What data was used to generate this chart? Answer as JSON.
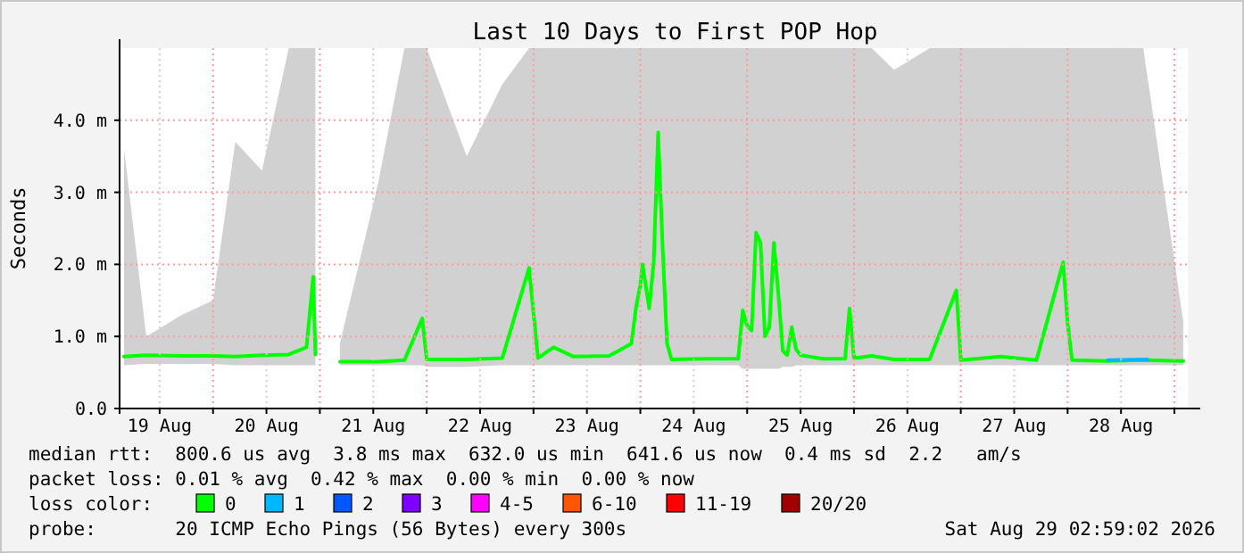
{
  "chart_data": {
    "type": "line",
    "title": "Last 10 Days to First POP Hop",
    "ylabel": "Seconds",
    "xlim": [
      "2026-08-19T03:00",
      "2026-08-29T03:00"
    ],
    "xticks": [
      {
        "value": "2026-08-19T12:00",
        "label": "19 Aug"
      },
      {
        "value": "2026-08-20T00:00",
        "label": null
      },
      {
        "value": "2026-08-20T12:00",
        "label": "20 Aug"
      },
      {
        "value": "2026-08-21T00:00",
        "label": null
      },
      {
        "value": "2026-08-21T12:00",
        "label": "21 Aug"
      },
      {
        "value": "2026-08-22T00:00",
        "label": null
      },
      {
        "value": "2026-08-22T12:00",
        "label": "22 Aug"
      },
      {
        "value": "2026-08-23T00:00",
        "label": null
      },
      {
        "value": "2026-08-23T12:00",
        "label": "23 Aug"
      },
      {
        "value": "2026-08-24T00:00",
        "label": null
      },
      {
        "value": "2026-08-24T12:00",
        "label": "24 Aug"
      },
      {
        "value": "2026-08-25T00:00",
        "label": null
      },
      {
        "value": "2026-08-25T12:00",
        "label": "25 Aug"
      },
      {
        "value": "2026-08-26T00:00",
        "label": null
      },
      {
        "value": "2026-08-26T12:00",
        "label": "26 Aug"
      },
      {
        "value": "2026-08-27T00:00",
        "label": null
      },
      {
        "value": "2026-08-27T12:00",
        "label": "27 Aug"
      },
      {
        "value": "2026-08-28T00:00",
        "label": null
      },
      {
        "value": "2026-08-28T12:00",
        "label": "28 Aug"
      },
      {
        "value": "2026-08-29T00:00",
        "label": null
      }
    ],
    "ylim": [
      0,
      5
    ],
    "yticks": [
      {
        "value": 0,
        "label": "0.0"
      },
      {
        "value": 1,
        "label": "1.0 m"
      },
      {
        "value": 2,
        "label": "2.0 m"
      },
      {
        "value": 3,
        "label": "3.0 m"
      },
      {
        "value": 4,
        "label": "4.0 m"
      }
    ],
    "grid": true,
    "legend": "bottom",
    "legend_title": "loss color:",
    "marker": "none",
    "line_style": "solid",
    "series": [
      {
        "name": "0",
        "color": "#00ff00",
        "x": [
          "2026-08-19T04:00",
          "2026-08-19T09:00",
          "2026-08-19T17:00",
          "2026-08-20T00:00",
          "2026-08-20T05:00",
          "2026-08-20T11:00",
          "2026-08-20T17:00",
          "2026-08-20T21:00",
          "2026-08-20T22:30",
          "2026-08-20T23:00",
          "2026-08-21T01:00",
          "2026-08-21T04:30",
          "2026-08-21T13:00",
          "2026-08-21T19:00",
          "2026-08-21T23:00",
          "2026-08-22T00:00",
          "2026-08-22T09:00",
          "2026-08-22T17:00",
          "2026-08-22T23:00",
          "2026-08-23T01:00",
          "2026-08-23T04:30",
          "2026-08-23T09:00",
          "2026-08-23T17:00",
          "2026-08-23T22:00",
          "2026-08-23T23:00",
          "2026-08-24T00:00",
          "2026-08-24T00:30",
          "2026-08-24T02:00",
          "2026-08-24T03:00",
          "2026-08-24T04:00",
          "2026-08-24T05:00",
          "2026-08-24T06:00",
          "2026-08-24T07:00",
          "2026-08-24T15:00",
          "2026-08-24T22:00",
          "2026-08-24T23:00",
          "2026-08-25T00:00",
          "2026-08-25T01:00",
          "2026-08-25T02:00",
          "2026-08-25T03:00",
          "2026-08-25T04:00",
          "2026-08-25T05:00",
          "2026-08-25T06:00",
          "2026-08-25T07:00",
          "2026-08-25T08:00",
          "2026-08-25T09:00",
          "2026-08-25T10:00",
          "2026-08-25T11:00",
          "2026-08-25T12:00",
          "2026-08-25T17:00",
          "2026-08-25T22:00",
          "2026-08-25T23:00",
          "2026-08-26T00:00",
          "2026-08-26T04:00",
          "2026-08-26T09:00",
          "2026-08-26T17:00",
          "2026-08-26T23:00",
          "2026-08-27T00:00",
          "2026-08-27T09:00",
          "2026-08-27T17:00",
          "2026-08-27T23:00",
          "2026-08-28T00:00",
          "2026-08-28T01:00",
          "2026-08-28T09:00",
          "2026-08-28T17:00",
          "2026-08-29T02:00"
        ],
        "values": [
          0.72,
          0.74,
          0.73,
          0.73,
          0.72,
          0.74,
          0.75,
          0.85,
          1.83,
          0.75,
          null,
          0.65,
          0.65,
          0.67,
          1.25,
          0.68,
          0.68,
          0.7,
          1.95,
          0.7,
          0.85,
          0.72,
          0.73,
          0.9,
          1.39,
          1.72,
          2.0,
          1.39,
          2.03,
          3.83,
          2.25,
          0.9,
          0.68,
          0.69,
          0.69,
          1.36,
          1.15,
          1.08,
          2.44,
          2.3,
          1.0,
          1.13,
          2.3,
          1.6,
          0.8,
          0.74,
          1.13,
          0.82,
          0.74,
          0.69,
          0.69,
          1.39,
          0.7,
          0.73,
          0.68,
          0.68,
          1.64,
          0.67,
          0.72,
          0.67,
          2.03,
          1.18,
          0.67,
          0.66,
          0.67,
          0.66
        ],
        "lower": [
          0.6,
          0.62,
          0.62,
          0.62,
          0.6,
          0.6,
          0.6,
          0.6,
          0.6,
          0.6,
          null,
          0.6,
          0.6,
          0.6,
          0.6,
          0.58,
          0.58,
          0.6,
          0.6,
          0.6,
          0.6,
          0.6,
          0.6,
          0.6,
          0.6,
          0.6,
          0.6,
          0.6,
          0.6,
          0.6,
          0.6,
          0.6,
          0.6,
          0.6,
          0.6,
          0.55,
          0.55,
          0.55,
          0.55,
          0.55,
          0.55,
          0.55,
          0.55,
          0.55,
          0.58,
          0.58,
          0.58,
          0.6,
          0.6,
          0.6,
          0.6,
          0.6,
          0.6,
          0.6,
          0.6,
          0.6,
          0.6,
          0.6,
          0.6,
          0.6,
          0.6,
          0.6,
          0.6,
          0.6,
          0.6,
          0.6
        ],
        "upper": [
          3.6,
          1.0,
          1.3,
          1.5,
          3.7,
          3.3,
          5,
          5,
          5,
          5,
          null,
          0.9,
          3.1,
          5,
          5,
          5,
          3.5,
          4.5,
          5,
          5,
          5,
          5,
          5,
          5,
          5,
          5,
          5,
          5,
          5,
          5,
          5,
          5,
          5,
          5,
          5,
          5,
          5,
          5,
          5,
          5,
          5,
          5,
          5,
          5,
          5,
          5,
          5,
          5,
          5,
          5,
          5,
          5,
          5,
          5,
          4.7,
          5,
          5,
          5,
          5,
          5,
          5,
          5,
          5,
          5,
          5,
          1.2
        ]
      },
      {
        "name": "1",
        "color": "#00b8ff",
        "x": [
          "2026-08-28T09:00",
          "2026-08-28T18:00"
        ],
        "values": [
          0.67,
          0.68
        ]
      },
      {
        "name": "2",
        "color": "#0059ff"
      },
      {
        "name": "3",
        "color": "#7e00ff"
      },
      {
        "name": "4-5",
        "color": "#ff00ff"
      },
      {
        "name": "6-10",
        "color": "#ff5500"
      },
      {
        "name": "11-19",
        "color": "#ff0000"
      },
      {
        "name": "20/20",
        "color": "#a10000"
      }
    ],
    "annotations": [
      "median rtt:  800.6 us avg  3.8 ms max  632.0 us min  641.6 us now  0.4 ms sd  2.2   am/s",
      "packet loss: 0.01 % avg  0.42 % max  0.00 % min  0.00 % now",
      "probe:       20 ICMP Echo Pings (56 Bytes) every 300s",
      "Sat Aug 29 02:59:02 2026"
    ]
  }
}
